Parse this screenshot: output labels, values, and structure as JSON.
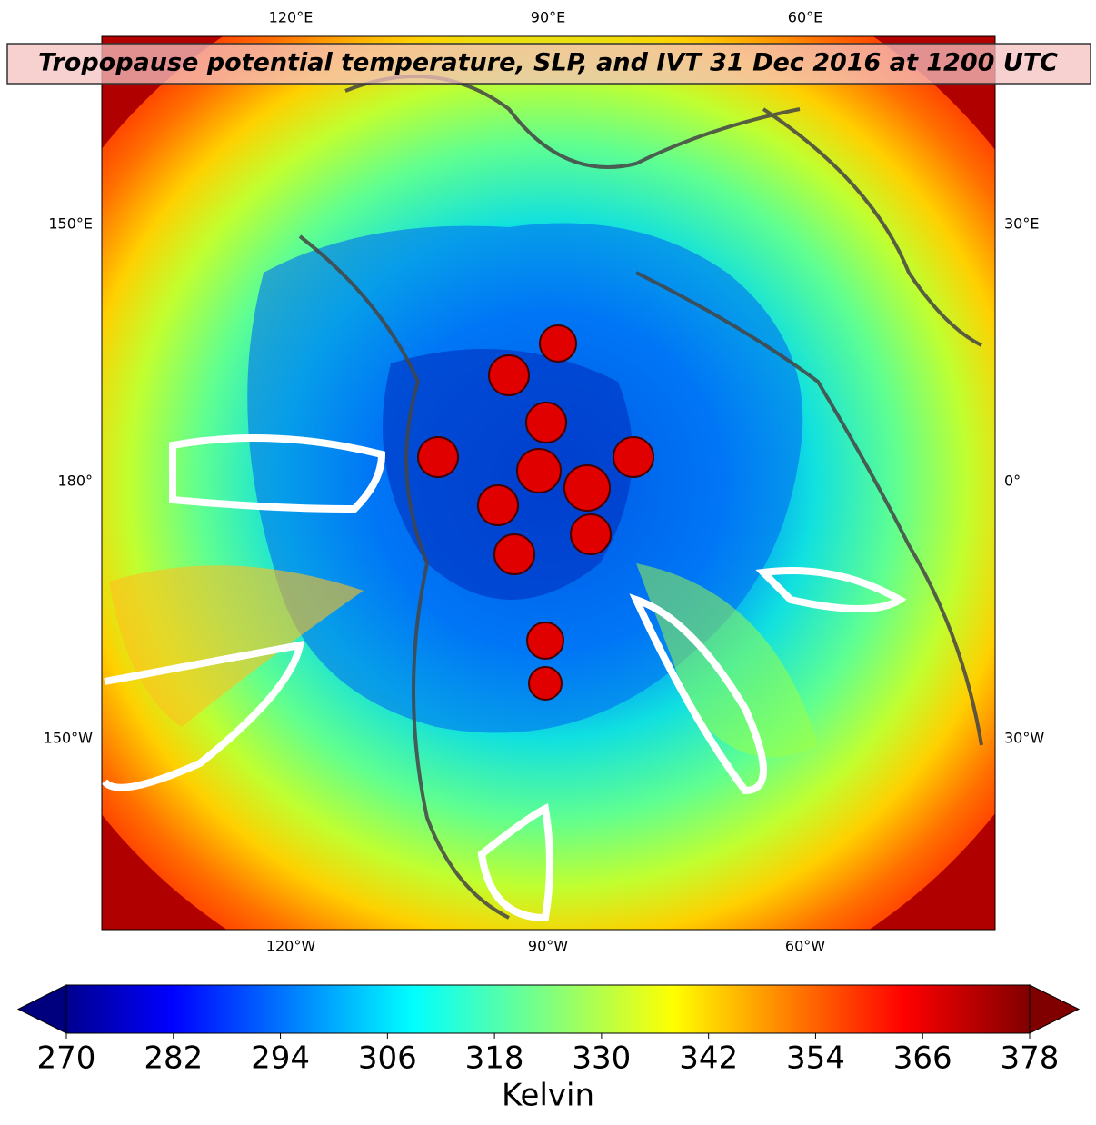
{
  "title": "Tropopause potential temperature, SLP, and IVT 31 Dec 2016 at 1200 UTC",
  "lon_labels": {
    "top": [
      "120°E",
      "90°E",
      "60°E"
    ],
    "bottom": [
      "120°W",
      "90°W",
      "60°W"
    ],
    "left": [
      "150°E",
      "180°",
      "150°W"
    ],
    "right": [
      "30°E",
      "0°",
      "30°W"
    ]
  },
  "colorbar": {
    "lim": [
      270,
      378
    ],
    "ticks": [
      270,
      282,
      294,
      306,
      318,
      330,
      342,
      354,
      366,
      378
    ],
    "label": "Kelvin"
  }
}
